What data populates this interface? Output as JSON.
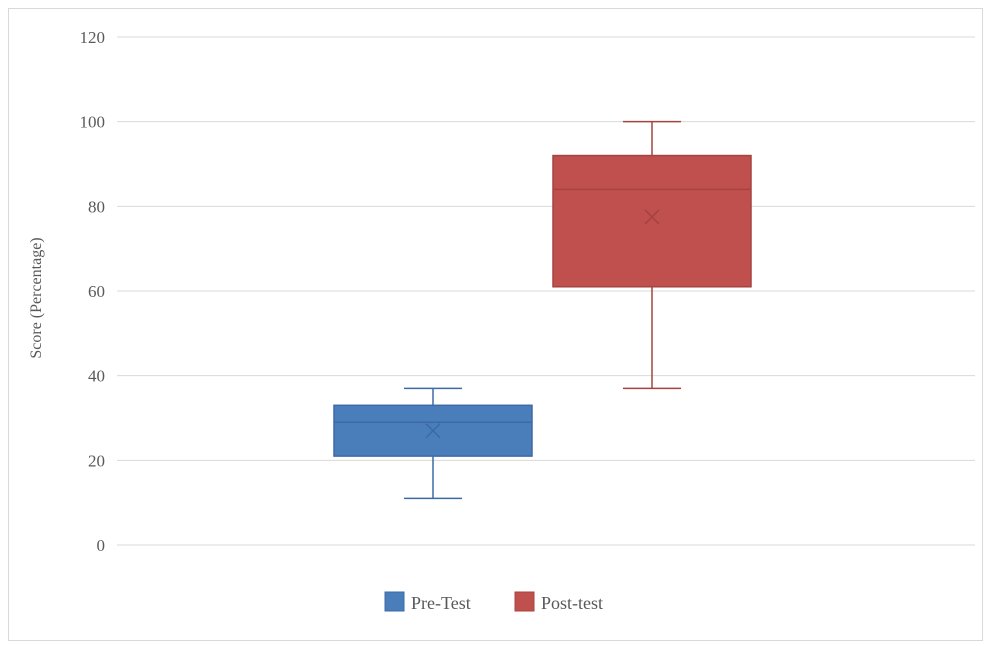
{
  "chart_data": {
    "type": "box",
    "title": "",
    "xlabel": "",
    "ylabel": "Score (Percentage)",
    "ylim": [
      0,
      120
    ],
    "yticks": [
      0,
      20,
      40,
      60,
      80,
      100,
      120
    ],
    "grid": true,
    "legend_position": "bottom",
    "series": [
      {
        "name": "Pre-Test",
        "color": "#4a7ebb",
        "border_color": "#3d6aa6",
        "min": 11,
        "q1": 21,
        "median": 29,
        "q3": 33,
        "max": 37,
        "mean": 27
      },
      {
        "name": "Post-test",
        "color": "#c0504d",
        "border_color": "#a64340",
        "min": 37,
        "q1": 61,
        "median": 84,
        "q3": 92,
        "max": 100,
        "mean": 77.5
      }
    ]
  }
}
